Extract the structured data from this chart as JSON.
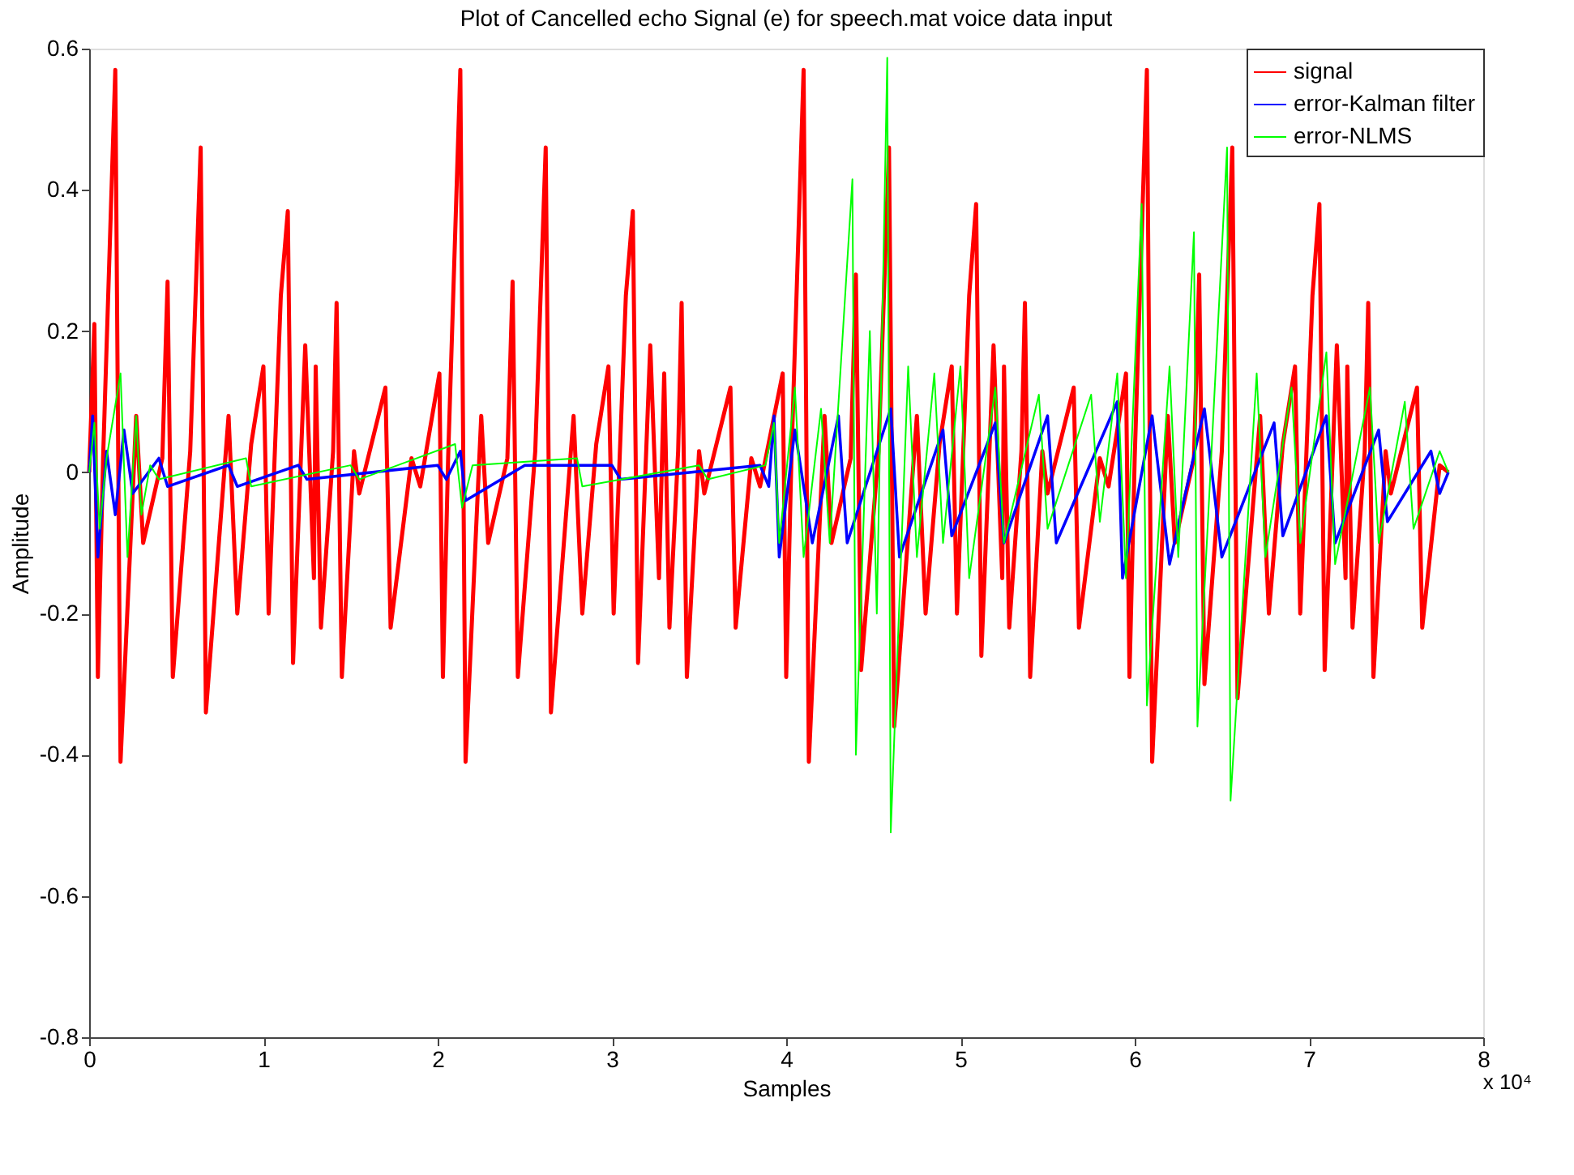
{
  "chart_data": {
    "type": "line",
    "title": "Plot of Cancelled echo Signal (e) for speech.mat voice data input",
    "xlabel": "Samples",
    "ylabel": "Amplitude",
    "annotations": [
      "x 10⁴"
    ],
    "xlim": [
      0,
      8
    ],
    "xticks": [
      0,
      1,
      2,
      3,
      4,
      5,
      6,
      7,
      8
    ],
    "ylim": [
      -0.8,
      0.6
    ],
    "yticks": [
      -0.8,
      -0.6,
      -0.4,
      -0.2,
      0,
      0.2,
      0.4,
      0.6
    ],
    "grid": false,
    "legend": "top right",
    "marker": "none",
    "line_style": "solid",
    "series": [
      {
        "name": "signal",
        "color": "#ff0000",
        "x": [
          0,
          0.03,
          0.05,
          0.08,
          0.15,
          0.18,
          0.27,
          0.31,
          0.42,
          0.45,
          0.48,
          0.58,
          0.64,
          0.67,
          0.8,
          0.85,
          0.93,
          1.0,
          1.03,
          1.1,
          1.14,
          1.17,
          1.24,
          1.29,
          1.3,
          1.33,
          1.4,
          1.42,
          1.45,
          1.52,
          1.55,
          1.7,
          1.73,
          1.85,
          1.9,
          2.01,
          2.03,
          2.06,
          2.13,
          2.16,
          2.25,
          2.29,
          2.4,
          2.43,
          2.46,
          2.56,
          2.62,
          2.65,
          2.78,
          2.83,
          2.91,
          2.98,
          3.01,
          3.08,
          3.12,
          3.15,
          3.22,
          3.27,
          3.3,
          3.33,
          3.38,
          3.4,
          3.43,
          3.5,
          3.53,
          3.68,
          3.71,
          3.8,
          3.85,
          3.98,
          4.0,
          4.03,
          4.1,
          4.13,
          4.22,
          4.26,
          4.37,
          4.4,
          4.43,
          4.53,
          4.59,
          4.62,
          4.75,
          4.8,
          4.88,
          4.95,
          4.98,
          5.05,
          5.09,
          5.12,
          5.19,
          5.24,
          5.25,
          5.28,
          5.35,
          5.37,
          5.4,
          5.47,
          5.5,
          5.65,
          5.68,
          5.8,
          5.85,
          5.95,
          5.97,
          6.0,
          6.07,
          6.1,
          6.19,
          6.23,
          6.34,
          6.37,
          6.4,
          6.5,
          6.56,
          6.59,
          6.72,
          6.77,
          6.85,
          6.92,
          6.95,
          7.02,
          7.06,
          7.09,
          7.16,
          7.21,
          7.22,
          7.25,
          7.32,
          7.34,
          7.37,
          7.44,
          7.47,
          7.62,
          7.65,
          7.75,
          7.8
        ],
        "values": [
          0,
          0.21,
          -0.29,
          0.02,
          0.57,
          -0.41,
          0.08,
          -0.1,
          0.02,
          0.27,
          -0.29,
          0.03,
          0.46,
          -0.34,
          0.08,
          -0.2,
          0.04,
          0.15,
          -0.2,
          0.25,
          0.37,
          -0.27,
          0.18,
          -0.15,
          0.15,
          -0.22,
          0.03,
          0.24,
          -0.29,
          0.03,
          -0.03,
          0.12,
          -0.22,
          0.02,
          -0.02,
          0.14,
          -0.29,
          0.02,
          0.57,
          -0.41,
          0.08,
          -0.1,
          0.02,
          0.27,
          -0.29,
          0.03,
          0.46,
          -0.34,
          0.08,
          -0.2,
          0.04,
          0.15,
          -0.2,
          0.25,
          0.37,
          -0.27,
          0.18,
          -0.15,
          0.14,
          -0.22,
          0.03,
          0.24,
          -0.29,
          0.03,
          -0.03,
          0.12,
          -0.22,
          0.02,
          -0.02,
          0.14,
          -0.29,
          0.02,
          0.57,
          -0.41,
          0.08,
          -0.1,
          0.02,
          0.28,
          -0.28,
          0.03,
          0.46,
          -0.36,
          0.08,
          -0.2,
          0.04,
          0.15,
          -0.2,
          0.25,
          0.38,
          -0.26,
          0.18,
          -0.15,
          0.15,
          -0.22,
          0.03,
          0.24,
          -0.29,
          0.03,
          -0.03,
          0.12,
          -0.22,
          0.02,
          -0.02,
          0.14,
          -0.29,
          0.02,
          0.57,
          -0.41,
          0.08,
          -0.1,
          0.02,
          0.28,
          -0.3,
          0.03,
          0.46,
          -0.32,
          0.08,
          -0.2,
          0.04,
          0.15,
          -0.2,
          0.25,
          0.38,
          -0.28,
          0.18,
          -0.15,
          0.15,
          -0.22,
          0.03,
          0.24,
          -0.29,
          0.03,
          -0.03,
          0.12,
          -0.22,
          0.01,
          0
        ]
      },
      {
        "name": "error-Kalman filter",
        "color": "#0000ff",
        "x": [
          0,
          0.02,
          0.05,
          0.1,
          0.15,
          0.2,
          0.25,
          0.4,
          0.45,
          0.8,
          0.85,
          1.2,
          1.25,
          2.0,
          2.05,
          2.13,
          2.16,
          2.5,
          3.0,
          3.05,
          3.85,
          3.9,
          3.93,
          3.96,
          4.05,
          4.15,
          4.3,
          4.35,
          4.6,
          4.65,
          4.9,
          4.95,
          5.2,
          5.25,
          5.5,
          5.55,
          5.9,
          5.93,
          6.1,
          6.2,
          6.4,
          6.5,
          6.8,
          6.85,
          7.1,
          7.15,
          7.4,
          7.45,
          7.7,
          7.75,
          7.8
        ],
        "values": [
          0,
          0.08,
          -0.12,
          0.03,
          -0.06,
          0.06,
          -0.03,
          0.02,
          -0.02,
          0.01,
          -0.02,
          0.01,
          -0.01,
          0.01,
          -0.01,
          0.03,
          -0.04,
          0.01,
          0.01,
          -0.01,
          0.01,
          -0.02,
          0.08,
          -0.12,
          0.06,
          -0.1,
          0.08,
          -0.1,
          0.09,
          -0.12,
          0.06,
          -0.09,
          0.07,
          -0.1,
          0.08,
          -0.1,
          0.1,
          -0.15,
          0.08,
          -0.13,
          0.09,
          -0.12,
          0.07,
          -0.09,
          0.08,
          -0.1,
          0.06,
          -0.07,
          0.03,
          -0.03,
          0
        ]
      },
      {
        "name": "error-NLMS",
        "color": "#00ff00",
        "x": [
          0,
          0.03,
          0.06,
          0.1,
          0.18,
          0.22,
          0.27,
          0.3,
          0.35,
          0.4,
          0.9,
          0.93,
          1.5,
          1.55,
          2.1,
          2.14,
          2.2,
          2.8,
          2.83,
          3.5,
          3.55,
          3.88,
          3.93,
          3.96,
          4.05,
          4.1,
          4.2,
          4.25,
          4.38,
          4.4,
          4.48,
          4.52,
          4.58,
          4.6,
          4.7,
          4.75,
          4.85,
          4.9,
          5.0,
          5.05,
          5.2,
          5.25,
          5.45,
          5.5,
          5.75,
          5.8,
          5.9,
          5.95,
          6.04,
          6.07,
          6.2,
          6.25,
          6.34,
          6.36,
          6.53,
          6.55,
          6.7,
          6.75,
          6.9,
          6.95,
          7.1,
          7.15,
          7.35,
          7.4,
          7.55,
          7.6,
          7.75,
          7.8
        ],
        "values": [
          0,
          0.07,
          -0.08,
          0.02,
          0.14,
          -0.12,
          0.08,
          -0.06,
          0.01,
          -0.01,
          0.02,
          -0.02,
          0.01,
          -0.01,
          0.04,
          -0.05,
          0.01,
          0.02,
          -0.02,
          0.01,
          -0.01,
          0.01,
          0.07,
          -0.1,
          0.12,
          -0.12,
          0.09,
          -0.1,
          0.415,
          -0.4,
          0.2,
          -0.2,
          0.587,
          -0.51,
          0.15,
          -0.12,
          0.14,
          -0.1,
          0.15,
          -0.15,
          0.12,
          -0.1,
          0.11,
          -0.08,
          0.11,
          -0.07,
          0.14,
          -0.15,
          0.38,
          -0.33,
          0.15,
          -0.12,
          0.34,
          -0.36,
          0.46,
          -0.465,
          0.14,
          -0.12,
          0.12,
          -0.1,
          0.17,
          -0.13,
          0.12,
          -0.1,
          0.1,
          -0.08,
          0.03,
          0
        ]
      }
    ]
  }
}
